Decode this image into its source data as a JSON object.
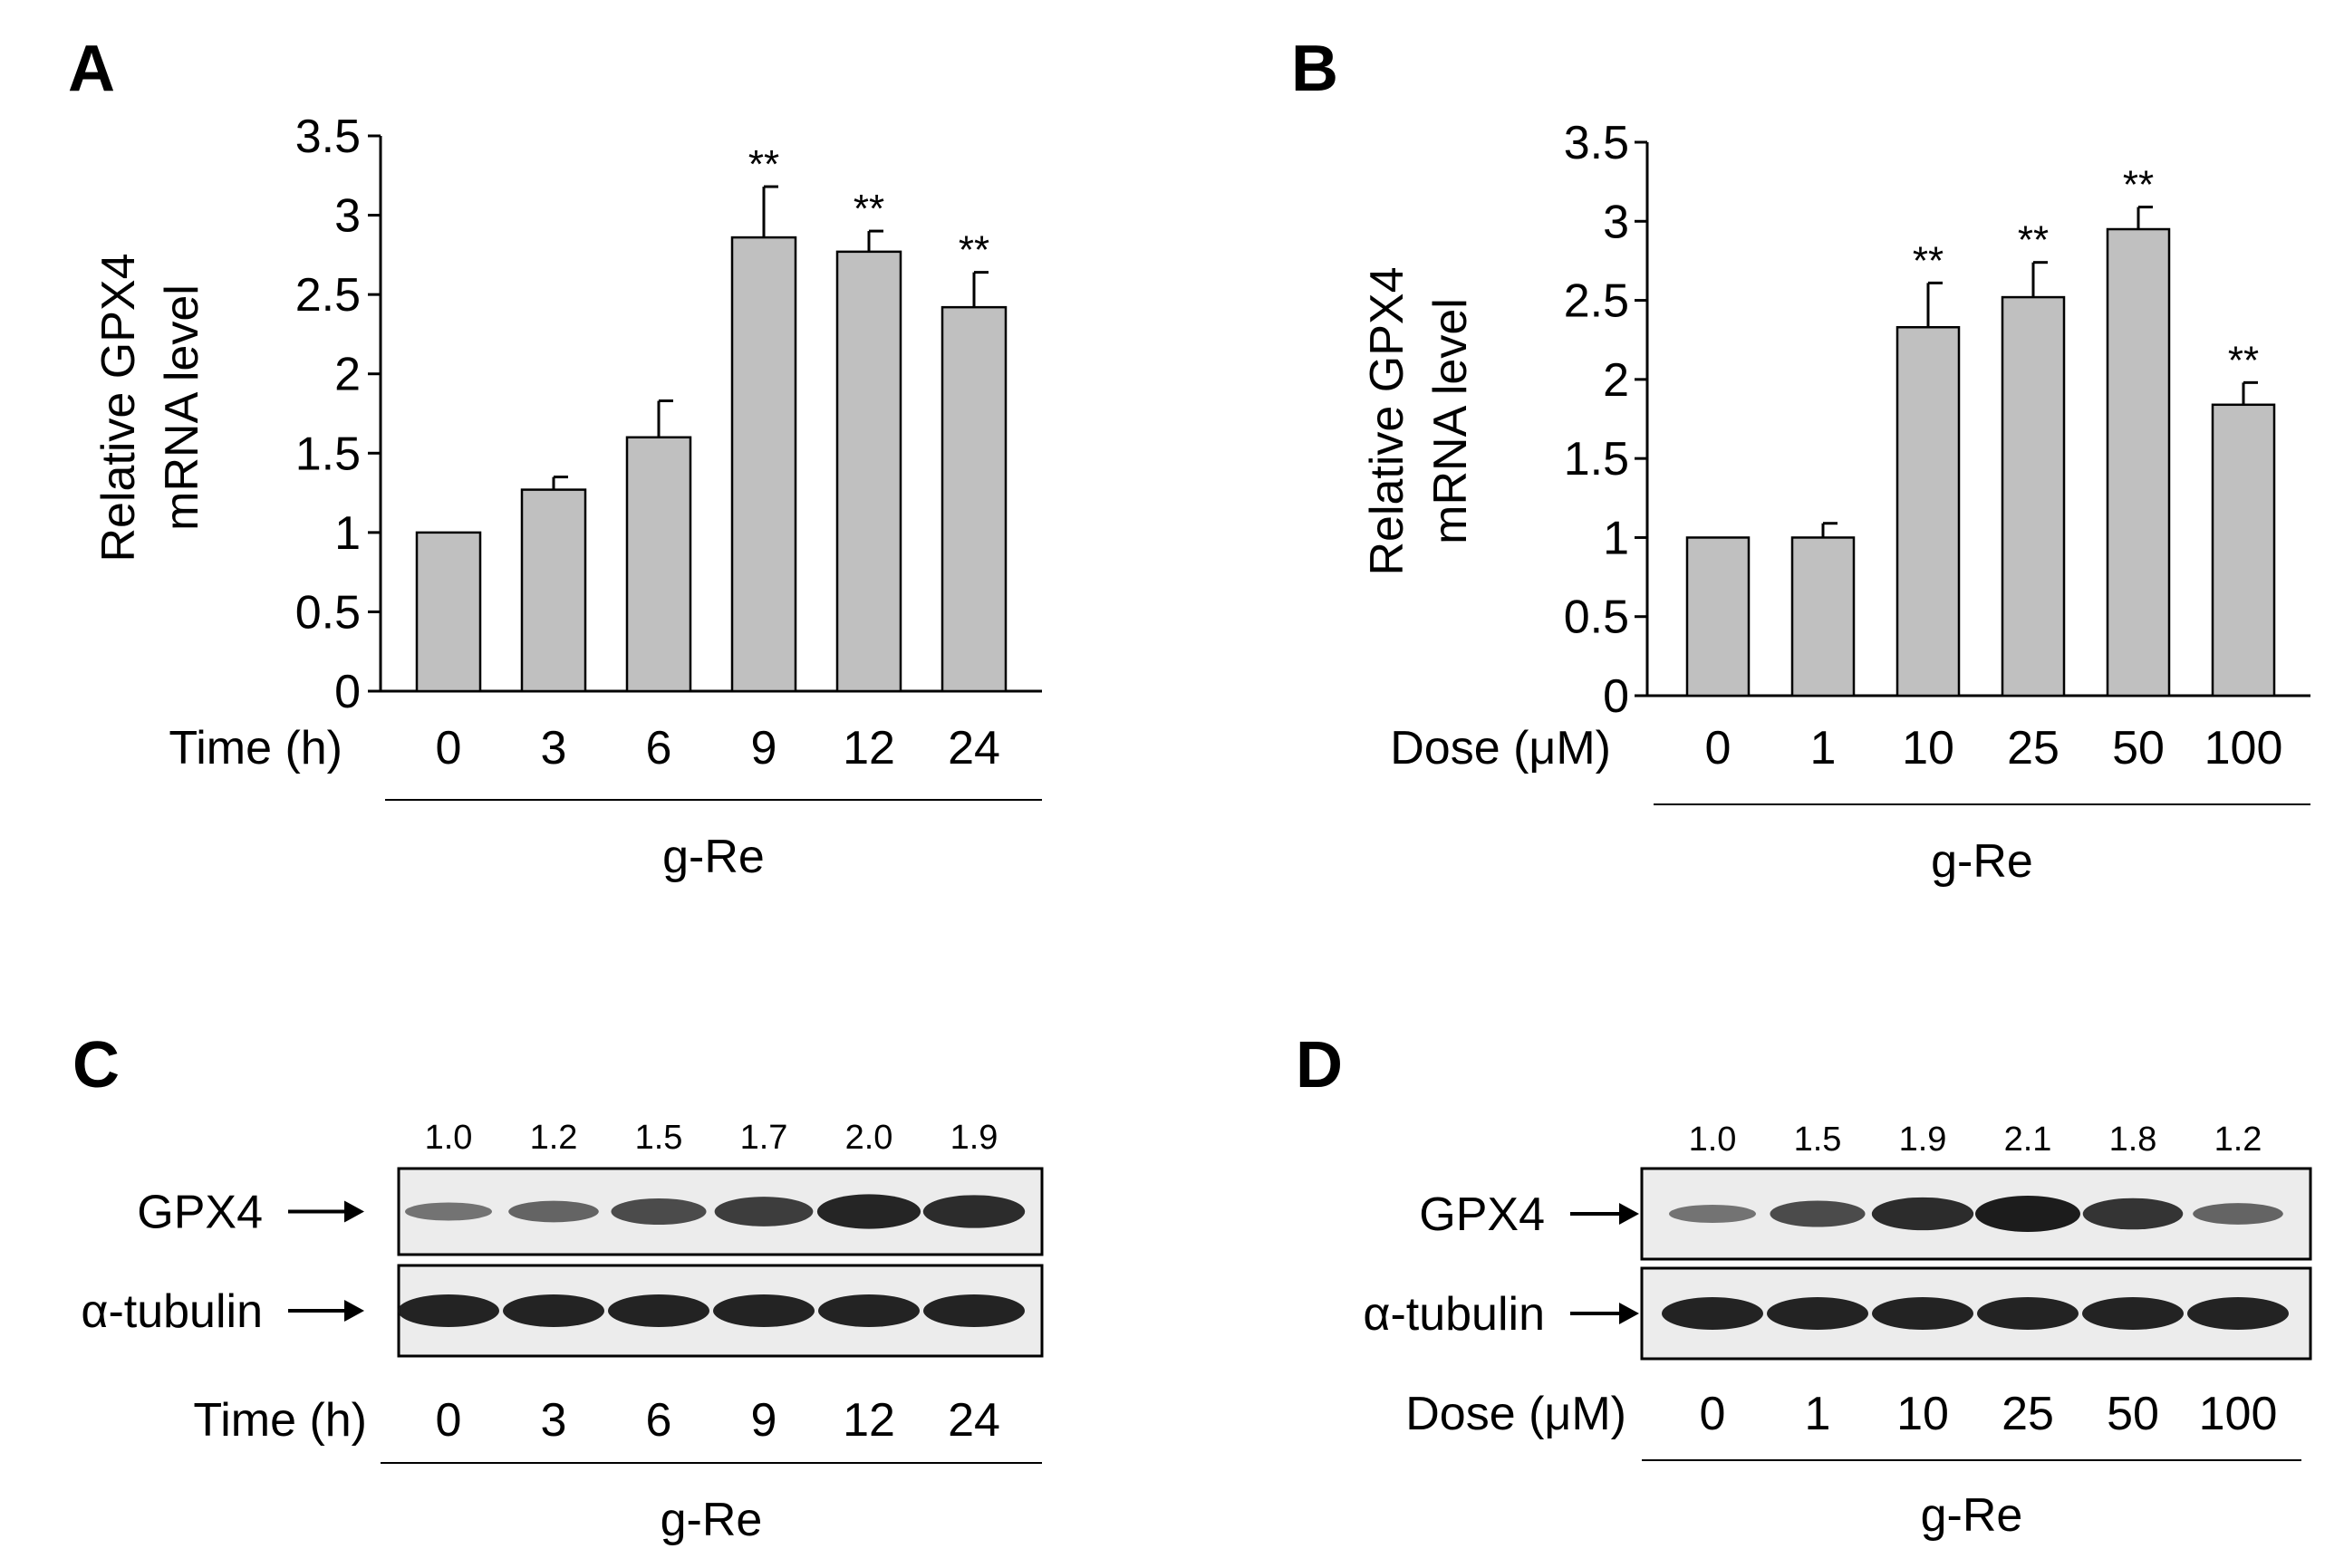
{
  "chart_data": [
    {
      "panel": "A",
      "type": "bar",
      "ylabel_line1": "Relative GPX4",
      "ylabel_line2": "mRNA level",
      "xlabel": "Time (h)",
      "group_label": "g-Re",
      "categories": [
        "0",
        "3",
        "6",
        "9",
        "12",
        "24"
      ],
      "values": [
        1.0,
        1.27,
        1.6,
        2.86,
        2.77,
        2.42
      ],
      "errors": [
        0,
        0.08,
        0.23,
        0.32,
        0.13,
        0.22
      ],
      "significance": [
        "",
        "",
        "",
        "**",
        "**",
        "**"
      ],
      "ylim": [
        0,
        3.5
      ],
      "yticks": [
        "0",
        "0.5",
        "1",
        "1.5",
        "2",
        "2.5",
        "3",
        "3.5"
      ],
      "bar_color": "#c0c0c0"
    },
    {
      "panel": "B",
      "type": "bar",
      "ylabel_line1": "Relative GPX4",
      "ylabel_line2": "mRNA level",
      "xlabel": "Dose (μM)",
      "group_label": "g-Re",
      "categories": [
        "0",
        "1",
        "10",
        "25",
        "50",
        "100"
      ],
      "values": [
        1.0,
        1.0,
        2.33,
        2.52,
        2.95,
        1.84
      ],
      "errors": [
        0,
        0.09,
        0.28,
        0.22,
        0.14,
        0.14
      ],
      "significance": [
        "",
        "",
        "**",
        "**",
        "**",
        "**"
      ],
      "ylim": [
        0,
        3.5
      ],
      "yticks": [
        "0",
        "0.5",
        "1",
        "1.5",
        "2",
        "2.5",
        "3",
        "3.5"
      ],
      "bar_color": "#c0c0c0"
    },
    {
      "panel": "C",
      "type": "blot",
      "quantification": [
        "1.0",
        "1.2",
        "1.5",
        "1.7",
        "2.0",
        "1.9"
      ],
      "gpx4_intensity": [
        1.0,
        1.2,
        1.5,
        1.7,
        2.0,
        1.9
      ],
      "rows": [
        "GPX4",
        "α-tubulin"
      ],
      "xlabel": "Time (h)",
      "lanes": [
        "0",
        "3",
        "6",
        "9",
        "12",
        "24"
      ],
      "group_label": "g-Re"
    },
    {
      "panel": "D",
      "type": "blot",
      "quantification": [
        "1.0",
        "1.5",
        "1.9",
        "2.1",
        "1.8",
        "1.2"
      ],
      "gpx4_intensity": [
        1.0,
        1.5,
        1.9,
        2.1,
        1.8,
        1.2
      ],
      "rows": [
        "GPX4",
        "α-tubulin"
      ],
      "xlabel": "Dose (μM)",
      "lanes": [
        "0",
        "1",
        "10",
        "25",
        "50",
        "100"
      ],
      "group_label": "g-Re"
    }
  ]
}
